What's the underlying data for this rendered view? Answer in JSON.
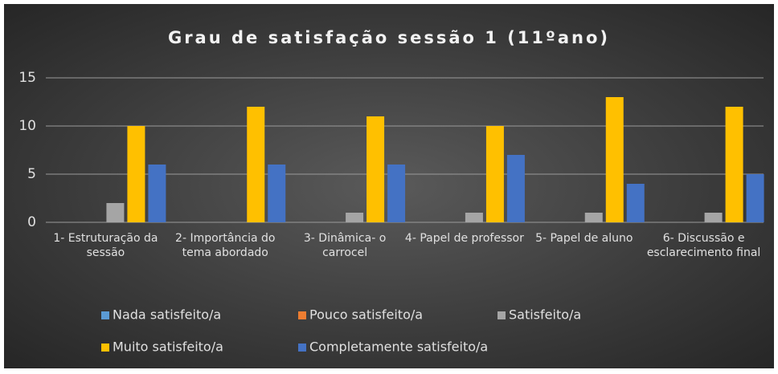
{
  "chart_data": {
    "type": "bar",
    "title": "Grau de satisfação sessão 1 (11ºano)",
    "categories": [
      "1- Estruturação da sessão",
      "2- Importância do tema abordado",
      "3- Dinâmica- o carrocel",
      "4- Papel de professor",
      "5- Papel de aluno",
      "6- Discussão e esclarecimento final"
    ],
    "series": [
      {
        "name": "Nada satisfeito/a",
        "color": "#5b9bd5",
        "values": [
          0,
          0,
          0,
          0,
          0,
          0
        ]
      },
      {
        "name": "Pouco satisfeito/a",
        "color": "#ed7d31",
        "values": [
          0,
          0,
          0,
          0,
          0,
          0
        ]
      },
      {
        "name": "Satisfeito/a",
        "color": "#a5a5a5",
        "values": [
          2,
          0,
          1,
          1,
          1,
          1
        ]
      },
      {
        "name": "Muito satisfeito/a",
        "color": "#ffc000",
        "values": [
          10,
          12,
          11,
          10,
          13,
          12
        ]
      },
      {
        "name": "Completamente satisfeito/a",
        "color": "#4472c4",
        "values": [
          6,
          6,
          6,
          7,
          4,
          5
        ]
      }
    ],
    "ylim": [
      0,
      15
    ],
    "yticks": [
      0,
      5,
      10,
      15
    ],
    "grid": true,
    "legend": "bottom"
  }
}
